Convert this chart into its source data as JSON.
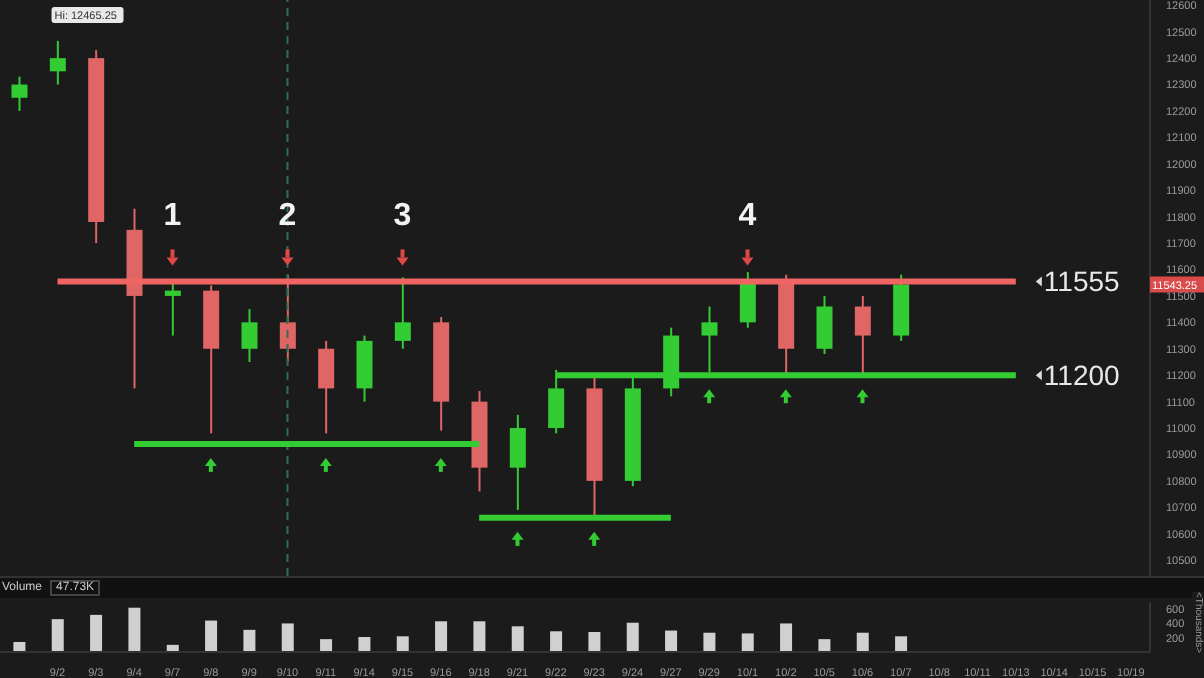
{
  "chart_data": [
    {
      "type": "candlestick",
      "categories": [
        null,
        "9/2",
        "9/3",
        "9/4",
        "9/7",
        "9/8",
        "9/9",
        "9/10",
        "9/11",
        "9/14",
        "9/15",
        "9/16",
        "9/18",
        "9/21",
        "9/22",
        "9/23",
        "9/24",
        "9/27",
        "9/29",
        "10/1",
        "10/2",
        "10/5",
        "10/6",
        "10/7",
        "10/8",
        "10/11",
        "10/13",
        "10/14",
        "10/15",
        "10/19"
      ],
      "ohlc": [
        [
          12250,
          12330,
          12200,
          12300
        ],
        [
          12350,
          12465.25,
          12300,
          12400
        ],
        [
          12400,
          12430,
          11700,
          11780
        ],
        [
          11750,
          11830,
          11150,
          11500
        ],
        [
          11500,
          11560,
          11350,
          11520
        ],
        [
          11520,
          11540,
          10980,
          11300
        ],
        [
          11300,
          11450,
          11250,
          11400
        ],
        [
          11400,
          11580,
          11250,
          11300
        ],
        [
          11300,
          11330,
          10980,
          11150
        ],
        [
          11150,
          11350,
          11100,
          11330
        ],
        [
          11330,
          11570,
          11300,
          11400
        ],
        [
          11400,
          11420,
          10990,
          11100
        ],
        [
          11100,
          11140,
          10760,
          10850
        ],
        [
          10850,
          11050,
          10690,
          11000
        ],
        [
          11000,
          11220,
          10980,
          11150
        ],
        [
          11150,
          11200,
          10670,
          10800
        ],
        [
          10800,
          11200,
          10780,
          11150
        ],
        [
          11150,
          11380,
          11120,
          11350
        ],
        [
          11350,
          11460,
          11210,
          11400
        ],
        [
          11400,
          11590,
          11380,
          11560
        ],
        [
          11560,
          11580,
          11200,
          11300
        ],
        [
          11300,
          11500,
          11280,
          11460
        ],
        [
          11460,
          11500,
          11200,
          11350
        ],
        [
          11350,
          11580,
          11330,
          11543.25
        ],
        null,
        null,
        null,
        null,
        null,
        null
      ],
      "colors": [
        "#33cc33",
        "#33cc33",
        "#e06666",
        "#e06666",
        "#33cc33",
        "#e06666",
        "#33cc33",
        "#e06666",
        "#e06666",
        "#33cc33",
        "#33cc33",
        "#e06666",
        "#e06666",
        "#33cc33",
        "#33cc33",
        "#e06666",
        "#33cc33",
        "#33cc33",
        "#33cc33",
        "#33cc33",
        "#e06666",
        "#33cc33",
        "#e06666",
        "#33cc33",
        null,
        null,
        null,
        null,
        null,
        null
      ],
      "series": [
        {
          "type": "line",
          "name": "11555",
          "x": [
            "9/2",
            "10/13"
          ],
          "values": [
            11555,
            11555
          ],
          "color": "#f06464"
        },
        {
          "type": "line",
          "name": "11200",
          "x": [
            "9/22",
            "10/13"
          ],
          "values": [
            11200,
            11200
          ],
          "color": "#33cc33"
        },
        {
          "type": "line",
          "x": [
            "9/4",
            "9/18"
          ],
          "values": [
            10940,
            10940
          ],
          "color": "#33cc33"
        },
        {
          "type": "line",
          "x": [
            "9/18",
            "9/27"
          ],
          "values": [
            10660,
            10660
          ],
          "color": "#33cc33"
        }
      ],
      "ref_lines": [
        {
          "axis": "x",
          "value": "9/10",
          "color": "#2f6f4f",
          "line_style": "dashed"
        }
      ],
      "annotations": [
        {
          "text": "1",
          "x": "9/7",
          "y": 11555
        },
        {
          "text": "2",
          "x": "9/10",
          "y": 11555
        },
        {
          "text": "3",
          "x": "9/15",
          "y": 11555
        },
        {
          "text": "4",
          "x": "10/1",
          "y": 11555
        },
        {
          "text": "Hi: 12465.25",
          "x": "9/2",
          "y": 12465.25
        },
        "11543.25"
      ],
      "ylim": [
        10440,
        12620
      ],
      "yticks": [
        10500,
        10600,
        10700,
        10800,
        10900,
        11000,
        11100,
        11200,
        11300,
        11400,
        11500,
        11600,
        11700,
        11800,
        11900,
        12000,
        12100,
        12200,
        12300,
        12400,
        12500,
        12600
      ],
      "tick_labels": "y"
    },
    {
      "type": "bar",
      "title": "Volume",
      "annotations": [
        "47.73K"
      ],
      "ylabel": "<Thousands>",
      "categories": [
        null,
        "9/2",
        "9/3",
        "9/4",
        "9/7",
        "9/8",
        "9/9",
        "9/10",
        "9/11",
        "9/14",
        "9/15",
        "9/16",
        "9/18",
        "9/21",
        "9/22",
        "9/23",
        "9/24",
        "9/27",
        "9/29",
        "10/1",
        "10/2",
        "10/5",
        "10/6",
        "10/7",
        "10/8",
        "10/11",
        "10/13",
        "10/14",
        "10/15",
        "10/19"
      ],
      "values": [
        140,
        460,
        520,
        620,
        100,
        440,
        310,
        400,
        180,
        210,
        220,
        430,
        430,
        360,
        290,
        280,
        410,
        300,
        270,
        260,
        400,
        180,
        270,
        220,
        null,
        null,
        null,
        null,
        null,
        null
      ],
      "color": "#d0d0d0",
      "ylim": [
        0,
        700
      ],
      "yticks": [
        200,
        400,
        600
      ]
    }
  ]
}
